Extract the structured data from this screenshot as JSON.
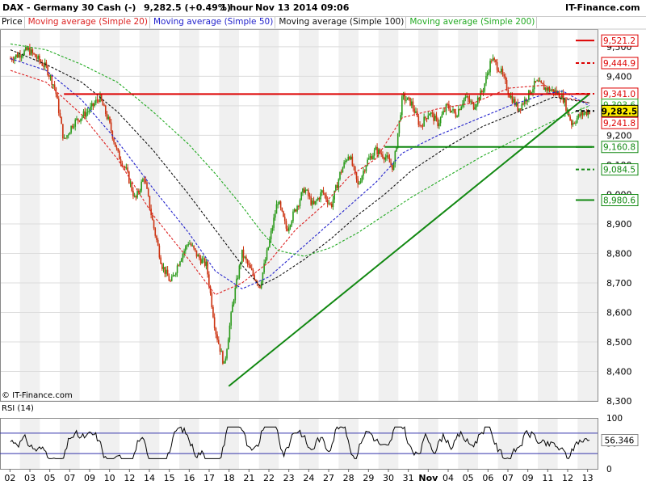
{
  "header": {
    "title": "DAX - Germany 30 Cash (-)",
    "quote": "9,282.5 (+0.49%)",
    "timeframe": "1 hour",
    "datetime": "Nov 13 2014 09:06",
    "brand": "IT-Finance.com"
  },
  "legend": {
    "price": "Price",
    "ma20": "Moving average (Simple 20)",
    "ma50": "Moving average (Simple 50)",
    "ma100": "Moving average (Simple 100)",
    "ma200": "Moving average (Simple 200)"
  },
  "footer": {
    "source": "© IT-Finance.com"
  },
  "colors": {
    "ma20": "#dd2222",
    "ma50": "#2222cc",
    "ma100": "#111111",
    "ma200": "#22aa22",
    "bull": "#2a9a1a",
    "bear": "#cc3311",
    "grid": "#dcdcdc",
    "band": "#f0f0f0",
    "support": "#118811",
    "resistance": "#dd0000",
    "rsi": "#000000",
    "rsi_bound": "#3333aa"
  },
  "chart_data": [
    {
      "type": "line",
      "name": "price-panel",
      "title": "DAX - Germany 30 Cash (-)",
      "ylim": [
        8300,
        9560
      ],
      "y_ticks": [
        8300,
        8400,
        8500,
        8600,
        8700,
        8800,
        8900,
        9000,
        9100,
        9200,
        9300,
        9400,
        9500
      ],
      "x_labels": [
        "02",
        "03",
        "05",
        "07",
        "09",
        "10",
        "12",
        "14",
        "15",
        "16",
        "17",
        "18",
        "21",
        "22",
        "23",
        "24",
        "27",
        "28",
        "29",
        "30",
        "31",
        "Nov",
        "04",
        "05",
        "06",
        "07",
        "09",
        "11",
        "12",
        "13"
      ],
      "last_price": 9282.5,
      "change_pct": 0.49,
      "price_path": [
        [
          0,
          9460
        ],
        [
          2,
          9490
        ],
        [
          4,
          9430
        ],
        [
          5,
          9360
        ],
        [
          6,
          9180
        ],
        [
          7,
          9240
        ],
        [
          9,
          9290
        ],
        [
          10,
          9330
        ],
        [
          11,
          9250
        ],
        [
          12,
          9140
        ],
        [
          13,
          9080
        ],
        [
          14,
          8980
        ],
        [
          15,
          9060
        ],
        [
          16,
          8900
        ],
        [
          17,
          8760
        ],
        [
          18,
          8700
        ],
        [
          19,
          8780
        ],
        [
          20,
          8840
        ],
        [
          21,
          8790
        ],
        [
          22,
          8760
        ],
        [
          23,
          8540
        ],
        [
          24,
          8420
        ],
        [
          25,
          8640
        ],
        [
          26,
          8800
        ],
        [
          27,
          8740
        ],
        [
          28,
          8690
        ],
        [
          29,
          8830
        ],
        [
          30,
          8980
        ],
        [
          31,
          8880
        ],
        [
          32,
          8950
        ],
        [
          33,
          9020
        ],
        [
          34,
          8960
        ],
        [
          35,
          9010
        ],
        [
          36,
          8960
        ],
        [
          37,
          9070
        ],
        [
          38,
          9140
        ],
        [
          39,
          9030
        ],
        [
          40,
          9110
        ],
        [
          41,
          9150
        ],
        [
          42,
          9130
        ],
        [
          43,
          9090
        ],
        [
          44,
          9330
        ],
        [
          45,
          9310
        ],
        [
          46,
          9230
        ],
        [
          47,
          9280
        ],
        [
          48,
          9240
        ],
        [
          49,
          9300
        ],
        [
          50,
          9270
        ],
        [
          51,
          9330
        ],
        [
          52,
          9300
        ],
        [
          53,
          9350
        ],
        [
          54,
          9460
        ],
        [
          55,
          9420
        ],
        [
          56,
          9340
        ],
        [
          57,
          9290
        ],
        [
          58,
          9330
        ],
        [
          59,
          9380
        ],
        [
          60,
          9360
        ],
        [
          61,
          9350
        ],
        [
          62,
          9330
        ],
        [
          63,
          9240
        ],
        [
          64,
          9270
        ],
        [
          65,
          9282.5
        ]
      ],
      "moving_averages": [
        {
          "name": "Moving average (Simple 20)",
          "values": [
            [
              0,
              9420
            ],
            [
              4,
              9380
            ],
            [
              8,
              9270
            ],
            [
              12,
              9120
            ],
            [
              16,
              8930
            ],
            [
              20,
              8780
            ],
            [
              23,
              8660
            ],
            [
              26,
              8700
            ],
            [
              29,
              8770
            ],
            [
              32,
              8880
            ],
            [
              35,
              8960
            ],
            [
              38,
              9060
            ],
            [
              41,
              9120
            ],
            [
              44,
              9260
            ],
            [
              48,
              9290
            ],
            [
              52,
              9310
            ],
            [
              56,
              9360
            ],
            [
              60,
              9370
            ],
            [
              62,
              9330
            ],
            [
              65,
              9310
            ]
          ]
        },
        {
          "name": "Moving average (Simple 50)",
          "values": [
            [
              0,
              9460
            ],
            [
              4,
              9420
            ],
            [
              8,
              9320
            ],
            [
              12,
              9180
            ],
            [
              16,
              9020
            ],
            [
              20,
              8870
            ],
            [
              23,
              8740
            ],
            [
              26,
              8680
            ],
            [
              29,
              8720
            ],
            [
              32,
              8800
            ],
            [
              35,
              8880
            ],
            [
              38,
              8960
            ],
            [
              41,
              9040
            ],
            [
              44,
              9140
            ],
            [
              48,
              9200
            ],
            [
              52,
              9250
            ],
            [
              56,
              9300
            ],
            [
              60,
              9340
            ],
            [
              62,
              9350
            ],
            [
              65,
              9300
            ]
          ]
        },
        {
          "name": "Moving average (Simple 100)",
          "values": [
            [
              0,
              9490
            ],
            [
              4,
              9440
            ],
            [
              8,
              9380
            ],
            [
              12,
              9280
            ],
            [
              16,
              9150
            ],
            [
              20,
              9000
            ],
            [
              23,
              8880
            ],
            [
              26,
              8760
            ],
            [
              28,
              8690
            ],
            [
              30,
              8720
            ],
            [
              33,
              8780
            ],
            [
              36,
              8850
            ],
            [
              39,
              8930
            ],
            [
              42,
              9000
            ],
            [
              45,
              9080
            ],
            [
              49,
              9160
            ],
            [
              53,
              9230
            ],
            [
              57,
              9280
            ],
            [
              61,
              9330
            ],
            [
              65,
              9310
            ]
          ]
        },
        {
          "name": "Moving average (Simple 200)",
          "values": [
            [
              0,
              9510
            ],
            [
              4,
              9490
            ],
            [
              8,
              9440
            ],
            [
              12,
              9380
            ],
            [
              16,
              9280
            ],
            [
              20,
              9170
            ],
            [
              23,
              9070
            ],
            [
              26,
              8960
            ],
            [
              28,
              8880
            ],
            [
              30,
              8810
            ],
            [
              33,
              8790
            ],
            [
              36,
              8820
            ],
            [
              39,
              8870
            ],
            [
              42,
              8930
            ],
            [
              45,
              8990
            ],
            [
              49,
              9060
            ],
            [
              53,
              9130
            ],
            [
              57,
              9190
            ],
            [
              61,
              9250
            ],
            [
              65,
              9300
            ]
          ]
        }
      ],
      "trend_lines": [
        {
          "name": "uptrend-support",
          "from": [
            24.5,
            8350
          ],
          "to": [
            65,
            9340
          ]
        },
        {
          "name": "resistance",
          "from": [
            6,
            9340
          ],
          "to": [
            65,
            9340
          ]
        },
        {
          "name": "support",
          "from": [
            42,
            9160.8
          ],
          "to": [
            66,
            9160.8
          ]
        }
      ],
      "price_levels": [
        {
          "value": 9521.2,
          "label": "9,521.2",
          "color": "#dd0000",
          "style": "solid"
        },
        {
          "value": 9444.9,
          "label": "9,444.9",
          "color": "#dd0000",
          "style": "dashed"
        },
        {
          "value": 9341.0,
          "label": "9,341.0",
          "color": "#dd0000",
          "style": "dashed"
        },
        {
          "value": 9303.6,
          "label": "9,303.6",
          "color": "#22aa22",
          "style": "none"
        },
        {
          "value": 9282.5,
          "label": "9,282.5",
          "color": "#000000",
          "style": "dashed",
          "current": true
        },
        {
          "value": 9241.8,
          "label": "9,241.8",
          "color": "#dd0000",
          "style": "none"
        },
        {
          "value": 9160.8,
          "label": "9,160.8",
          "color": "#118811",
          "style": "solid"
        },
        {
          "value": 9084.5,
          "label": "9,084.5",
          "color": "#118811",
          "style": "dashed"
        },
        {
          "value": 8980.6,
          "label": "8,980.6",
          "color": "#118811",
          "style": "solid"
        }
      ]
    },
    {
      "type": "line",
      "name": "rsi-panel",
      "title": "RSI (14)",
      "ylim": [
        0,
        100
      ],
      "y_ticks": [
        0,
        50,
        100
      ],
      "bounds": [
        70,
        30
      ],
      "last_value": 56.346,
      "last_label": "56.346"
    }
  ]
}
